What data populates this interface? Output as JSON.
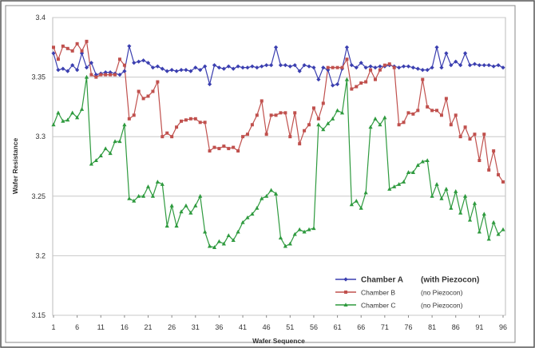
{
  "chart_data": {
    "type": "line",
    "xlabel": "Wafer Sequence",
    "ylabel": "Wafer Resistance",
    "ylim": [
      3.15,
      3.4
    ],
    "yticks": [
      "3.15",
      "3.2",
      "3.25",
      "3.3",
      "3.35",
      "3.4"
    ],
    "xlim": [
      1,
      96
    ],
    "xticks": [
      "1",
      "6",
      "11",
      "16",
      "21",
      "26",
      "31",
      "36",
      "41",
      "46",
      "51",
      "56",
      "61",
      "66",
      "71",
      "76",
      "81",
      "86",
      "91",
      "96"
    ],
    "grid": "horizontal",
    "legend_position": "bottom-right",
    "series": [
      {
        "name": "Chamber A",
        "note": "(with Piezocon)",
        "color": "#3b3fb0",
        "marker": "diamond",
        "values": [
          3.37,
          3.356,
          3.357,
          3.355,
          3.36,
          3.356,
          3.37,
          3.358,
          3.362,
          3.352,
          3.353,
          3.354,
          3.354,
          3.353,
          3.352,
          3.355,
          3.376,
          3.362,
          3.363,
          3.364,
          3.362,
          3.358,
          3.359,
          3.357,
          3.355,
          3.356,
          3.355,
          3.356,
          3.356,
          3.355,
          3.358,
          3.356,
          3.359,
          3.344,
          3.36,
          3.358,
          3.357,
          3.359,
          3.357,
          3.359,
          3.358,
          3.358,
          3.359,
          3.358,
          3.359,
          3.36,
          3.36,
          3.375,
          3.36,
          3.36,
          3.359,
          3.36,
          3.355,
          3.36,
          3.359,
          3.358,
          3.348,
          3.358,
          3.356,
          3.343,
          3.344,
          3.357,
          3.375,
          3.36,
          3.358,
          3.362,
          3.358,
          3.359,
          3.358,
          3.359,
          3.359,
          3.36,
          3.359,
          3.358,
          3.359,
          3.359,
          3.358,
          3.357,
          3.356,
          3.356,
          3.358,
          3.375,
          3.358,
          3.37,
          3.36,
          3.363,
          3.36,
          3.37,
          3.36,
          3.361,
          3.36,
          3.36,
          3.36,
          3.359,
          3.36,
          3.358
        ]
      },
      {
        "name": "Chamber B",
        "note": "(no Piezocon)",
        "color": "#c0504d",
        "marker": "square",
        "values": [
          3.375,
          3.365,
          3.376,
          3.374,
          3.372,
          3.378,
          3.372,
          3.38,
          3.352,
          3.35,
          3.352,
          3.352,
          3.352,
          3.352,
          3.365,
          3.36,
          3.315,
          3.318,
          3.338,
          3.332,
          3.334,
          3.338,
          3.346,
          3.3,
          3.303,
          3.3,
          3.308,
          3.313,
          3.314,
          3.315,
          3.315,
          3.312,
          3.312,
          3.288,
          3.291,
          3.29,
          3.292,
          3.29,
          3.291,
          3.288,
          3.3,
          3.302,
          3.31,
          3.318,
          3.33,
          3.302,
          3.318,
          3.318,
          3.32,
          3.32,
          3.3,
          3.32,
          3.294,
          3.305,
          3.31,
          3.324,
          3.315,
          3.328,
          3.358,
          3.358,
          3.358,
          3.358,
          3.365,
          3.34,
          3.342,
          3.345,
          3.346,
          3.356,
          3.348,
          3.356,
          3.36,
          3.361,
          3.358,
          3.31,
          3.312,
          3.32,
          3.319,
          3.322,
          3.348,
          3.325,
          3.322,
          3.322,
          3.318,
          3.332,
          3.31,
          3.318,
          3.3,
          3.308,
          3.298,
          3.302,
          3.28,
          3.302,
          3.272,
          3.288,
          3.268,
          3.262
        ]
      },
      {
        "name": "Chamber C",
        "note": "(no Piezocon)",
        "color": "#2e9a3e",
        "marker": "triangle",
        "values": [
          3.31,
          3.32,
          3.313,
          3.314,
          3.32,
          3.316,
          3.323,
          3.35,
          3.277,
          3.28,
          3.284,
          3.29,
          3.286,
          3.296,
          3.296,
          3.31,
          3.248,
          3.246,
          3.25,
          3.25,
          3.258,
          3.25,
          3.262,
          3.26,
          3.225,
          3.242,
          3.225,
          3.237,
          3.242,
          3.236,
          3.242,
          3.25,
          3.22,
          3.208,
          3.207,
          3.212,
          3.21,
          3.217,
          3.213,
          3.22,
          3.228,
          3.232,
          3.235,
          3.24,
          3.248,
          3.25,
          3.255,
          3.252,
          3.215,
          3.208,
          3.21,
          3.218,
          3.222,
          3.22,
          3.222,
          3.223,
          3.31,
          3.306,
          3.311,
          3.315,
          3.322,
          3.32,
          3.348,
          3.243,
          3.246,
          3.24,
          3.253,
          3.308,
          3.315,
          3.31,
          3.316,
          3.256,
          3.258,
          3.26,
          3.262,
          3.27,
          3.27,
          3.276,
          3.279,
          3.28,
          3.25,
          3.26,
          3.248,
          3.256,
          3.24,
          3.254,
          3.236,
          3.25,
          3.23,
          3.244,
          3.22,
          3.235,
          3.214,
          3.228,
          3.218,
          3.222
        ]
      }
    ]
  }
}
